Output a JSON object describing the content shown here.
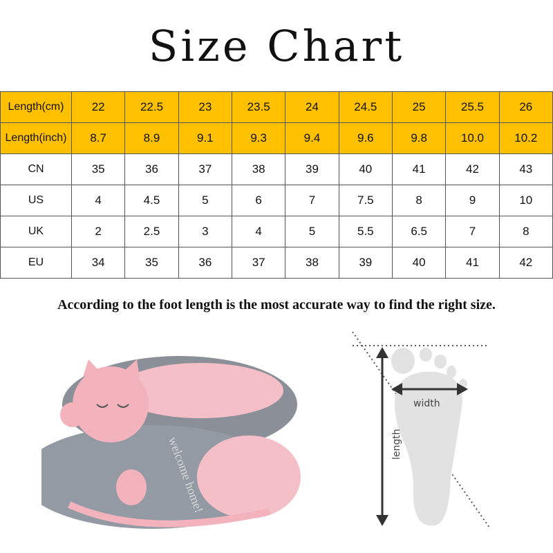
{
  "title": "Size Chart",
  "table": {
    "rows": [
      {
        "label": "Length(cm)",
        "values": [
          "22",
          "22.5",
          "23",
          "23.5",
          "24",
          "24.5",
          "25",
          "25.5",
          "26"
        ],
        "highlight": true
      },
      {
        "label": "Length(inch)",
        "values": [
          "8.7",
          "8.9",
          "9.1",
          "9.3",
          "9.4",
          "9.6",
          "9.8",
          "10.0",
          "10.2"
        ],
        "highlight": true
      },
      {
        "label": "CN",
        "values": [
          "35",
          "36",
          "37",
          "38",
          "39",
          "40",
          "41",
          "42",
          "43"
        ],
        "highlight": false
      },
      {
        "label": "US",
        "values": [
          "4",
          "4.5",
          "5",
          "6",
          "7",
          "7.5",
          "8",
          "9",
          "10"
        ],
        "highlight": false
      },
      {
        "label": "UK",
        "values": [
          "2",
          "2.5",
          "3",
          "4",
          "5",
          "5.5",
          "6.5",
          "7",
          "8"
        ],
        "highlight": false
      },
      {
        "label": "EU",
        "values": [
          "34",
          "35",
          "36",
          "37",
          "38",
          "39",
          "40",
          "41",
          "42"
        ],
        "highlight": false
      }
    ]
  },
  "note": "According to the foot length is the most  accurate way to find the right size.",
  "slipper": {
    "embroidery": "welcome home!"
  },
  "foot_diagram": {
    "width_label": "width",
    "length_label": "length"
  },
  "colors": {
    "header_bg": "#ffc000",
    "slipper_gray": "#8a8f98",
    "slipper_pink": "#f2b3bd"
  }
}
